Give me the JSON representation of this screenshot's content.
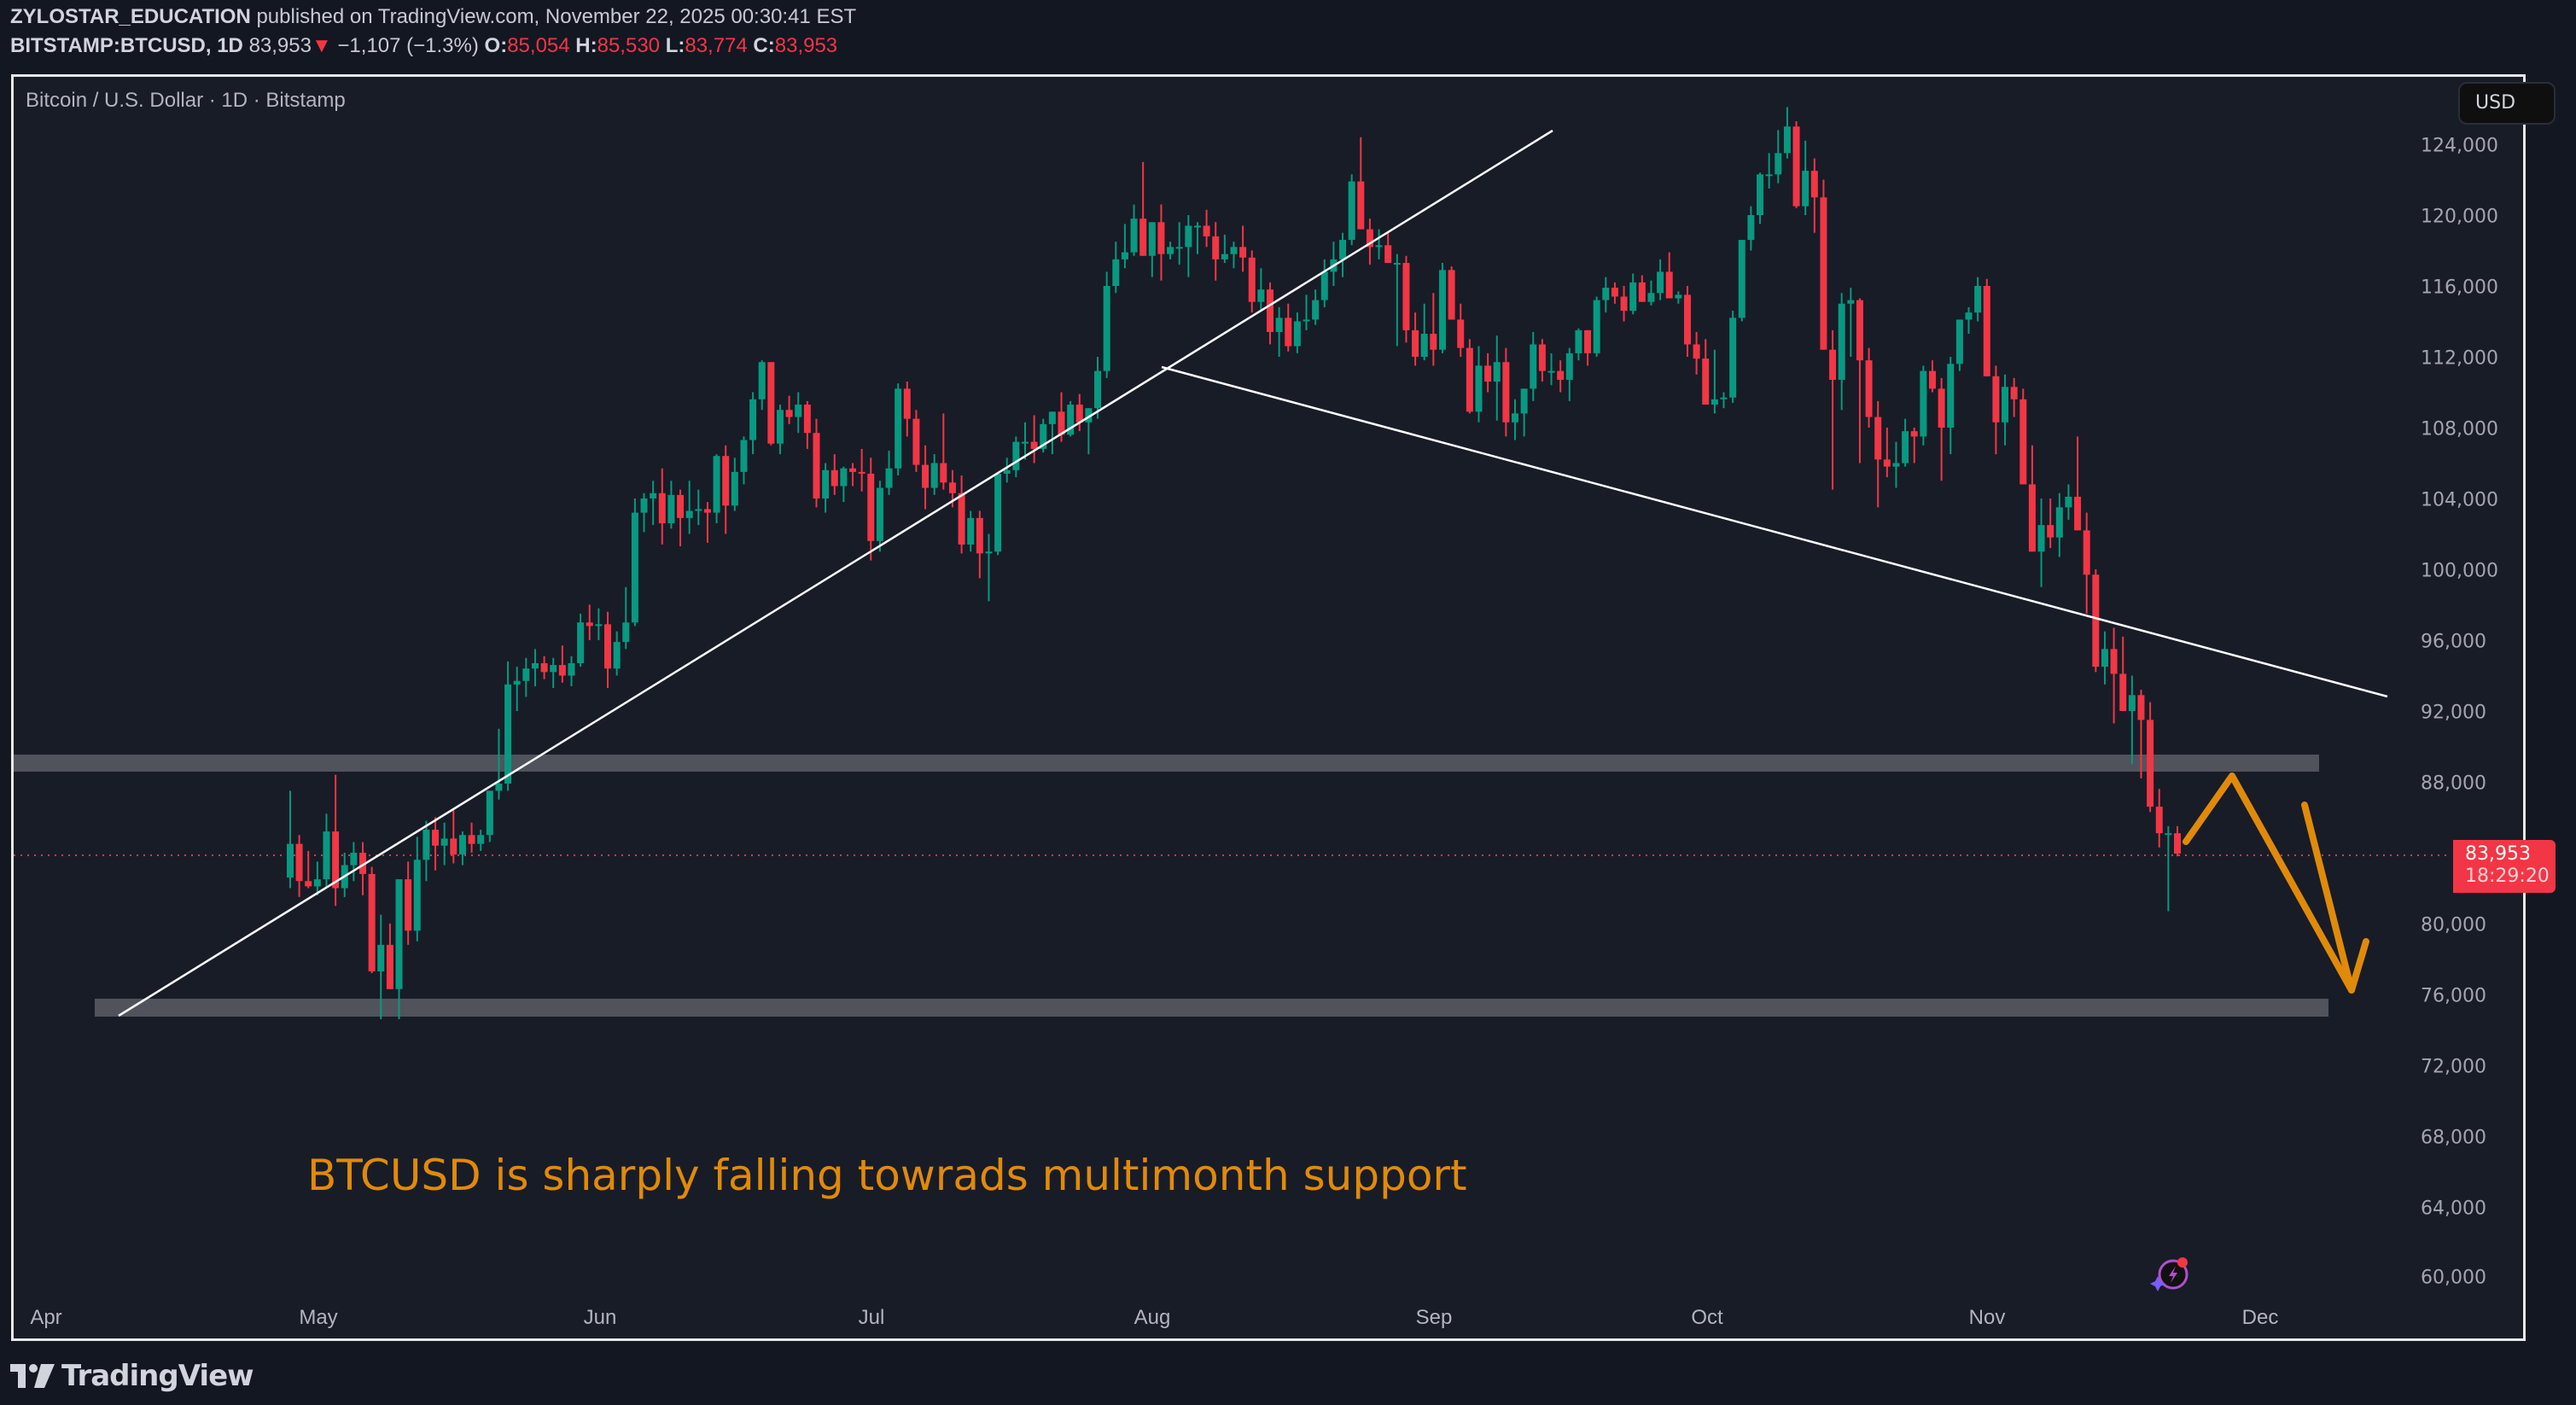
{
  "header": {
    "author": "ZYLOSTAR_EDUCATION",
    "published_text": "published on TradingView.com, November 22, 2025 00:30:41 EST",
    "symbol": "BITSTAMP:BTCUSD, 1D",
    "last": "83,953",
    "change": "−1,107 (−1.3%)",
    "o_label": "O:",
    "o": "85,054",
    "h_label": "H:",
    "h": "85,530",
    "l_label": "L:",
    "l": "83,774",
    "c_label": "C:",
    "c": "83,953",
    "down_arrow": "▼"
  },
  "chart_title": "Bitcoin / U.S. Dollar · 1D · Bitstamp",
  "currency_button": "USD",
  "price_tag": {
    "price": "83,953",
    "countdown": "18:29:20"
  },
  "annotation_text": "BTCUSD is sharply falling towrads multimonth support",
  "logo_text": "TradingView",
  "icons": {
    "logo": "tradingview-logo-icon",
    "ai": "ai-spark-icon"
  },
  "colors": {
    "up": "#089981",
    "down": "#f23645",
    "accent": "#e08a0a",
    "band": "#50535c",
    "background": "#181c27"
  },
  "chart_data": {
    "type": "candlestick",
    "title": "Bitcoin / U.S. Dollar · 1D · Bitstamp",
    "symbol": "BITSTAMP:BTCUSD",
    "interval": "1D",
    "xlabel": "",
    "ylabel": "USD",
    "ylim": [
      58000,
      128000
    ],
    "yticks": [
      "124,000",
      "120,000",
      "116,000",
      "112,000",
      "108,000",
      "104,000",
      "100,000",
      "96,000",
      "92,000",
      "88,000",
      "80,000",
      "76,000",
      "72,000",
      "68,000",
      "64,000",
      "60,000"
    ],
    "xticks": [
      "Apr",
      "May",
      "Jun",
      "Jul",
      "Aug",
      "Sep",
      "Oct",
      "Nov",
      "Dec"
    ],
    "last_price": 83953,
    "ohlc_last": {
      "open": 85054,
      "high": 85530,
      "low": 83774,
      "close": 83953
    },
    "start_date": "2025-03-29",
    "candles_k": [
      [
        82.6,
        87.5,
        82.0,
        84.5
      ],
      [
        84.5,
        85.0,
        81.5,
        82.4
      ],
      [
        82.4,
        84.1,
        82.0,
        82.1
      ],
      [
        82.1,
        83.5,
        81.6,
        82.5
      ],
      [
        82.5,
        86.2,
        82.0,
        85.2
      ],
      [
        85.2,
        88.4,
        81.0,
        82.0
      ],
      [
        82.0,
        84.0,
        81.5,
        83.3
      ],
      [
        83.3,
        84.6,
        82.4,
        84.0
      ],
      [
        84.0,
        84.6,
        81.6,
        82.8
      ],
      [
        82.8,
        83.2,
        77.2,
        77.3
      ],
      [
        77.3,
        80.5,
        74.6,
        78.8
      ],
      [
        78.8,
        80.0,
        76.5,
        76.3
      ],
      [
        76.3,
        82.5,
        74.6,
        82.5
      ],
      [
        82.5,
        83.5,
        78.8,
        79.6
      ],
      [
        79.6,
        84.9,
        79.0,
        83.6
      ],
      [
        83.6,
        85.8,
        82.4,
        85.3
      ],
      [
        85.3,
        86.0,
        83.0,
        84.4
      ],
      [
        84.4,
        85.7,
        83.3,
        84.8
      ],
      [
        84.8,
        86.4,
        83.4,
        83.9
      ],
      [
        83.9,
        85.2,
        83.3,
        85.0
      ],
      [
        85.0,
        85.7,
        84.0,
        84.5
      ],
      [
        84.5,
        85.3,
        84.1,
        85.0
      ],
      [
        85.0,
        87.0,
        84.6,
        87.5
      ],
      [
        87.5,
        91.0,
        87.0,
        87.9
      ],
      [
        87.9,
        94.8,
        87.5,
        93.5
      ],
      [
        93.5,
        94.5,
        92.0,
        93.7
      ],
      [
        93.7,
        95.0,
        92.8,
        94.4
      ],
      [
        94.4,
        95.5,
        93.4,
        94.7
      ],
      [
        94.7,
        95.1,
        93.8,
        94.2
      ],
      [
        94.2,
        95.0,
        93.3,
        94.6
      ],
      [
        94.6,
        95.7,
        93.6,
        94.0
      ],
      [
        94.0,
        95.1,
        93.4,
        94.7
      ],
      [
        94.7,
        97.5,
        94.5,
        97.0
      ],
      [
        97.0,
        98.0,
        96.0,
        96.8
      ],
      [
        96.8,
        97.8,
        96.0,
        96.9
      ],
      [
        96.9,
        97.6,
        93.3,
        94.4
      ],
      [
        94.4,
        96.5,
        94.0,
        95.9
      ],
      [
        95.9,
        99.0,
        95.5,
        97.0
      ],
      [
        97.0,
        104.0,
        96.8,
        103.2
      ],
      [
        103.2,
        104.3,
        102.1,
        104.0
      ],
      [
        104.0,
        105.0,
        102.5,
        104.3
      ],
      [
        104.3,
        105.7,
        101.4,
        102.6
      ],
      [
        102.6,
        105.0,
        102.3,
        104.2
      ],
      [
        104.2,
        104.5,
        101.3,
        102.9
      ],
      [
        102.9,
        105.0,
        102.0,
        103.3
      ],
      [
        103.3,
        104.5,
        102.5,
        103.4
      ],
      [
        103.4,
        103.8,
        101.5,
        103.2
      ],
      [
        103.2,
        106.5,
        102.6,
        106.4
      ],
      [
        106.4,
        107.0,
        102.0,
        103.6
      ],
      [
        103.6,
        106.3,
        103.3,
        105.5
      ],
      [
        105.5,
        107.5,
        104.8,
        107.3
      ],
      [
        107.3,
        110.0,
        106.5,
        109.6
      ],
      [
        109.6,
        111.8,
        109.0,
        111.7
      ],
      [
        111.7,
        111.6,
        107.0,
        107.1
      ],
      [
        107.1,
        109.3,
        106.5,
        109.0
      ],
      [
        109.0,
        109.8,
        108.2,
        108.6
      ],
      [
        108.6,
        110.0,
        107.7,
        109.3
      ],
      [
        109.3,
        109.5,
        106.8,
        107.7
      ],
      [
        107.7,
        108.5,
        103.5,
        104.0
      ],
      [
        104.0,
        106.0,
        103.2,
        105.6
      ],
      [
        105.6,
        106.5,
        104.2,
        104.7
      ],
      [
        104.7,
        105.8,
        103.8,
        105.7
      ],
      [
        105.7,
        106.0,
        104.7,
        105.5
      ],
      [
        105.5,
        106.8,
        104.4,
        105.4
      ],
      [
        105.4,
        106.3,
        100.5,
        101.6
      ],
      [
        101.6,
        105.0,
        101.0,
        104.6
      ],
      [
        104.6,
        106.7,
        104.2,
        105.7
      ],
      [
        105.7,
        110.5,
        105.3,
        110.2
      ],
      [
        110.2,
        110.6,
        107.5,
        108.5
      ],
      [
        108.5,
        109.0,
        105.5,
        105.9
      ],
      [
        105.9,
        107.0,
        103.4,
        104.6
      ],
      [
        104.6,
        106.5,
        104.2,
        106.0
      ],
      [
        106.0,
        108.8,
        104.5,
        104.9
      ],
      [
        104.9,
        105.6,
        103.5,
        104.3
      ],
      [
        104.3,
        105.3,
        100.9,
        101.4
      ],
      [
        101.4,
        103.3,
        101.0,
        102.9
      ],
      [
        102.9,
        103.3,
        99.5,
        100.9
      ],
      [
        100.9,
        102.0,
        98.2,
        101.0
      ],
      [
        101.0,
        105.5,
        100.8,
        105.4
      ],
      [
        105.4,
        106.3,
        104.9,
        105.6
      ],
      [
        105.6,
        107.5,
        105.2,
        107.2
      ],
      [
        107.2,
        108.3,
        106.2,
        107.2
      ],
      [
        107.2,
        108.7,
        106.0,
        106.8
      ],
      [
        106.8,
        108.5,
        106.6,
        108.2
      ],
      [
        108.2,
        108.8,
        106.5,
        108.9
      ],
      [
        108.9,
        110.0,
        107.2,
        107.6
      ],
      [
        107.6,
        109.5,
        107.5,
        109.3
      ],
      [
        109.3,
        109.9,
        107.8,
        108.3
      ],
      [
        108.3,
        109.1,
        106.5,
        109.1
      ],
      [
        109.1,
        112.0,
        108.5,
        111.2
      ],
      [
        111.2,
        116.8,
        110.8,
        116.0
      ],
      [
        116.0,
        118.5,
        115.6,
        117.5
      ],
      [
        117.5,
        119.5,
        117.0,
        117.9
      ],
      [
        117.9,
        120.6,
        117.7,
        119.8
      ],
      [
        119.8,
        123.0,
        118.0,
        117.7
      ],
      [
        117.7,
        119.2,
        116.5,
        119.6
      ],
      [
        119.6,
        120.6,
        116.3,
        117.8
      ],
      [
        117.8,
        118.5,
        117.5,
        118.2
      ],
      [
        118.2,
        119.6,
        117.2,
        118.2
      ],
      [
        118.2,
        120.0,
        116.5,
        119.4
      ],
      [
        119.4,
        119.6,
        117.8,
        119.4
      ],
      [
        119.4,
        120.3,
        118.2,
        118.8
      ],
      [
        118.8,
        119.6,
        116.3,
        117.5
      ],
      [
        117.5,
        118.9,
        117.3,
        117.8
      ],
      [
        117.8,
        118.5,
        117.0,
        118.2
      ],
      [
        118.2,
        119.4,
        116.8,
        117.6
      ],
      [
        117.6,
        118.0,
        114.5,
        115.1
      ],
      [
        115.1,
        117.0,
        114.6,
        115.8
      ],
      [
        115.8,
        116.2,
        112.7,
        113.4
      ],
      [
        113.4,
        114.8,
        112.0,
        114.2
      ],
      [
        114.2,
        115.0,
        112.3,
        112.6
      ],
      [
        112.6,
        114.5,
        112.2,
        114.0
      ],
      [
        114.0,
        115.5,
        113.5,
        114.1
      ],
      [
        114.1,
        115.8,
        113.8,
        115.2
      ],
      [
        115.2,
        117.5,
        114.8,
        116.8
      ],
      [
        116.8,
        118.5,
        116.0,
        117.5
      ],
      [
        117.5,
        119.0,
        116.5,
        118.6
      ],
      [
        118.6,
        122.3,
        118.3,
        121.9
      ],
      [
        121.9,
        124.4,
        121.1,
        119.2
      ],
      [
        119.2,
        119.8,
        117.2,
        118.2
      ],
      [
        118.2,
        119.2,
        117.5,
        118.3
      ],
      [
        118.3,
        119.0,
        117.4,
        117.3
      ],
      [
        117.3,
        117.8,
        112.6,
        117.3
      ],
      [
        117.3,
        117.7,
        112.8,
        113.5
      ],
      [
        113.5,
        114.5,
        111.5,
        112.0
      ],
      [
        112.0,
        115.0,
        111.8,
        113.3
      ],
      [
        113.3,
        115.6,
        111.5,
        112.4
      ],
      [
        112.4,
        117.3,
        112.2,
        116.9
      ],
      [
        116.9,
        117.1,
        114.6,
        114.1
      ],
      [
        114.1,
        115.0,
        112.0,
        112.5
      ],
      [
        112.5,
        113.0,
        108.8,
        108.9
      ],
      [
        108.9,
        112.6,
        108.3,
        111.5
      ],
      [
        111.5,
        112.2,
        110.0,
        110.6
      ],
      [
        110.6,
        113.2,
        108.4,
        111.7
      ],
      [
        111.7,
        112.5,
        107.5,
        108.3
      ],
      [
        108.3,
        109.6,
        107.3,
        108.8
      ],
      [
        108.8,
        110.0,
        107.5,
        110.2
      ],
      [
        110.2,
        113.4,
        109.5,
        112.7
      ],
      [
        112.7,
        113.0,
        110.6,
        111.2
      ],
      [
        111.2,
        112.2,
        110.4,
        111.2
      ],
      [
        111.2,
        111.8,
        110.0,
        110.7
      ],
      [
        110.7,
        112.5,
        109.5,
        112.2
      ],
      [
        112.2,
        113.6,
        111.8,
        113.5
      ],
      [
        113.5,
        113.5,
        111.5,
        112.2
      ],
      [
        112.2,
        115.4,
        112.0,
        115.2
      ],
      [
        115.2,
        116.5,
        114.5,
        115.9
      ],
      [
        115.9,
        116.2,
        115.0,
        115.4
      ],
      [
        115.4,
        116.0,
        114.0,
        114.6
      ],
      [
        114.6,
        116.7,
        114.4,
        116.2
      ],
      [
        116.2,
        116.6,
        115.2,
        115.1
      ],
      [
        115.1,
        116.3,
        114.9,
        115.6
      ],
      [
        115.6,
        117.5,
        115.2,
        116.8
      ],
      [
        116.8,
        117.9,
        115.6,
        115.3
      ],
      [
        115.3,
        115.7,
        115.0,
        115.5
      ],
      [
        115.5,
        116.0,
        112.0,
        112.7
      ],
      [
        112.7,
        113.4,
        111.0,
        111.9
      ],
      [
        111.9,
        113.0,
        109.7,
        109.3
      ],
      [
        109.3,
        112.4,
        108.8,
        109.6
      ],
      [
        109.6,
        110.0,
        109.1,
        109.7
      ],
      [
        109.7,
        114.6,
        109.4,
        114.2
      ],
      [
        114.2,
        118.0,
        114.0,
        118.6
      ],
      [
        118.6,
        120.5,
        118.0,
        120.0
      ],
      [
        120.0,
        122.4,
        119.5,
        122.3
      ],
      [
        122.3,
        123.5,
        121.5,
        122.3
      ],
      [
        122.3,
        124.8,
        121.8,
        123.5
      ],
      [
        123.5,
        126.1,
        123.2,
        125.0
      ],
      [
        125.0,
        125.3,
        120.4,
        120.5
      ],
      [
        120.5,
        124.2,
        120.0,
        122.5
      ],
      [
        122.5,
        123.2,
        119.0,
        121.0
      ],
      [
        121.0,
        122.0,
        112.6,
        112.4
      ],
      [
        112.4,
        113.5,
        104.5,
        110.7
      ],
      [
        110.7,
        115.6,
        109.0,
        115.0
      ],
      [
        115.0,
        115.9,
        112.0,
        115.2
      ],
      [
        115.2,
        115.3,
        106.0,
        111.8
      ],
      [
        111.8,
        112.5,
        108.0,
        108.6
      ],
      [
        108.6,
        109.5,
        103.5,
        106.2
      ],
      [
        106.2,
        108.0,
        105.2,
        105.8
      ],
      [
        105.8,
        107.2,
        104.6,
        106.0
      ],
      [
        106.0,
        108.5,
        105.8,
        107.8
      ],
      [
        107.8,
        108.0,
        106.0,
        107.5
      ],
      [
        107.5,
        111.5,
        107.0,
        111.2
      ],
      [
        111.2,
        111.8,
        110.0,
        110.2
      ],
      [
        110.2,
        110.8,
        105.0,
        108.0
      ],
      [
        108.0,
        112.0,
        106.5,
        111.6
      ],
      [
        111.6,
        114.0,
        111.2,
        114.1
      ],
      [
        114.1,
        114.8,
        113.3,
        114.5
      ],
      [
        114.5,
        116.5,
        114.0,
        116.0
      ],
      [
        116.0,
        116.4,
        113.4,
        110.9
      ],
      [
        110.9,
        111.5,
        106.5,
        108.3
      ],
      [
        108.3,
        111.0,
        107.0,
        110.3
      ],
      [
        110.3,
        110.8,
        108.6,
        109.6
      ],
      [
        109.6,
        110.2,
        106.0,
        104.8
      ],
      [
        104.8,
        107.0,
        103.5,
        101.0
      ],
      [
        101.0,
        104.0,
        99.0,
        102.5
      ],
      [
        102.5,
        104.0,
        101.2,
        101.8
      ],
      [
        101.8,
        104.3,
        100.7,
        103.5
      ],
      [
        103.5,
        104.8,
        102.8,
        104.1
      ],
      [
        104.1,
        107.5,
        103.5,
        102.2
      ],
      [
        102.2,
        103.2,
        97.5,
        99.7
      ],
      [
        99.7,
        100.0,
        94.2,
        94.5
      ],
      [
        94.5,
        96.5,
        93.5,
        95.5
      ],
      [
        95.5,
        96.7,
        91.3,
        94.1
      ],
      [
        94.1,
        96.2,
        92.0,
        92.0
      ],
      [
        92.0,
        94.0,
        89.0,
        92.9
      ],
      [
        92.9,
        93.2,
        88.2,
        91.5
      ],
      [
        91.5,
        92.5,
        86.3,
        86.6
      ],
      [
        86.6,
        87.6,
        84.3,
        85.1
      ],
      [
        85.1,
        85.5,
        80.7,
        85.1
      ],
      [
        85.1,
        85.5,
        83.8,
        83.95
      ]
    ]
  }
}
